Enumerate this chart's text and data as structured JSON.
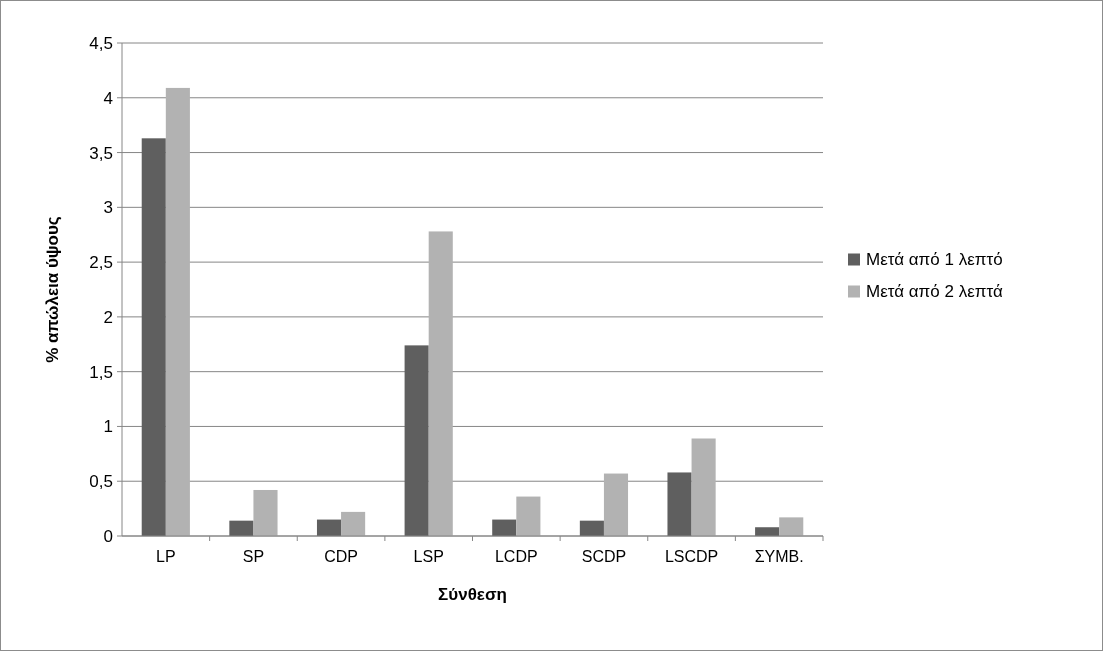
{
  "chart_data": {
    "type": "bar",
    "xlabel": "Σύνθεση",
    "ylabel": "% απώλεια ύψους",
    "categories": [
      "LP",
      "SP",
      "CDP",
      "LSP",
      "LCDP",
      "SCDP",
      "LSCDP",
      "ΣΥΜΒ."
    ],
    "series": [
      {
        "name": "Μετά από 1 λεπτό",
        "color": "#5f5f5f",
        "values": [
          3.63,
          0.14,
          0.15,
          1.74,
          0.15,
          0.14,
          0.58,
          0.08
        ]
      },
      {
        "name": "Μετά από 2 λεπτά",
        "color": "#b2b2b2",
        "values": [
          4.09,
          0.42,
          0.22,
          2.78,
          0.36,
          0.57,
          0.89,
          0.17
        ]
      }
    ],
    "ylim": [
      0,
      4.5
    ],
    "yticks": [
      0,
      {
        "value": 0.5,
        "label": "0,5"
      },
      1,
      {
        "value": 1.5,
        "label": "1,5"
      },
      2,
      {
        "value": 2.5,
        "label": "2,5"
      },
      3,
      {
        "value": 3.5,
        "label": "3,5"
      },
      4,
      {
        "value": 4.5,
        "label": "4,5"
      }
    ],
    "grid": "y",
    "legend": "right"
  }
}
